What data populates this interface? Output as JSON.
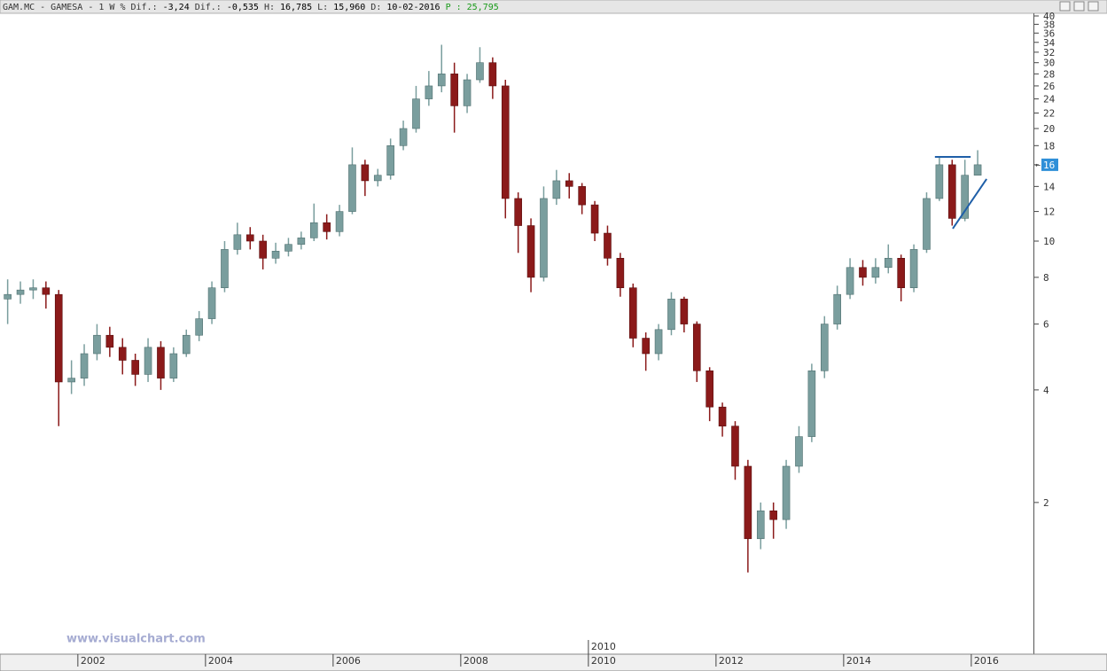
{
  "chart_data": {
    "type": "candlestick",
    "header": [
      {
        "text": "GAM.MC - GAMESA -  1 W % Dif.:",
        "color": "#333333"
      },
      {
        "text": "-3,24",
        "color": "#000000"
      },
      {
        "text": "Dif.:",
        "color": "#333333"
      },
      {
        "text": "-0,535",
        "color": "#000000"
      },
      {
        "text": "H:",
        "color": "#333333"
      },
      {
        "text": "16,785",
        "color": "#000000"
      },
      {
        "text": "L:",
        "color": "#333333"
      },
      {
        "text": "15,960",
        "color": "#000000"
      },
      {
        "text": "D:",
        "color": "#333333"
      },
      {
        "text": "10-02-2016",
        "color": "#000000"
      },
      {
        "text": "P : 25,795",
        "color": "#1a9a1a"
      }
    ],
    "watermark": "www.visualchart.com",
    "cursor_label": "2010",
    "log_scale": true,
    "up_color": "#7a9e9e",
    "down_color": "#8b1a1a",
    "x": [
      2000.9,
      2001.1,
      2001.3,
      2001.5,
      2001.7,
      2001.9,
      2002.1,
      2002.3,
      2002.5,
      2002.7,
      2002.9,
      2003.1,
      2003.3,
      2003.5,
      2003.7,
      2003.9,
      2004.1,
      2004.3,
      2004.5,
      2004.7,
      2004.9,
      2005.1,
      2005.3,
      2005.5,
      2005.7,
      2005.9,
      2006.1,
      2006.3,
      2006.5,
      2006.7,
      2006.9,
      2007.1,
      2007.3,
      2007.5,
      2007.7,
      2007.9,
      2008.1,
      2008.3,
      2008.5,
      2008.7,
      2008.9,
      2009.1,
      2009.3,
      2009.5,
      2009.7,
      2009.9,
      2010.1,
      2010.3,
      2010.5,
      2010.7,
      2010.9,
      2011.1,
      2011.3,
      2011.5,
      2011.7,
      2011.9,
      2012.1,
      2012.3,
      2012.5,
      2012.7,
      2012.9,
      2013.1,
      2013.3,
      2013.5,
      2013.7,
      2013.9,
      2014.1,
      2014.3,
      2014.5,
      2014.7,
      2014.9,
      2015.1,
      2015.3,
      2015.5,
      2015.7,
      2015.9,
      2016.1
    ],
    "open": [
      7.0,
      7.2,
      7.4,
      7.5,
      7.2,
      4.2,
      4.3,
      5.0,
      5.6,
      5.2,
      4.8,
      4.4,
      5.2,
      4.3,
      5.0,
      5.6,
      6.2,
      7.5,
      9.5,
      10.4,
      10.0,
      9.0,
      9.4,
      9.8,
      10.2,
      11.2,
      10.6,
      12.0,
      16.0,
      14.5,
      15.0,
      18.0,
      20.0,
      24.0,
      26.0,
      28.0,
      23.0,
      27.0,
      30.0,
      26.0,
      13.0,
      11.0,
      8.0,
      13.0,
      14.5,
      14.0,
      12.5,
      10.5,
      9.0,
      7.5,
      5.5,
      5.0,
      5.8,
      7.0,
      6.0,
      4.5,
      3.6,
      3.2,
      2.5,
      1.6,
      1.9,
      1.8,
      2.5,
      3.0,
      4.5,
      6.0,
      7.2,
      8.5,
      8.0,
      8.5,
      9.0,
      7.5,
      9.5,
      13.0,
      16.0,
      11.5,
      15.0
    ],
    "high": [
      7.9,
      7.8,
      7.9,
      7.8,
      7.4,
      4.8,
      5.3,
      6.0,
      5.9,
      5.5,
      5.0,
      5.5,
      5.4,
      5.2,
      5.8,
      6.5,
      7.8,
      10.0,
      11.2,
      10.9,
      10.4,
      9.9,
      10.2,
      10.6,
      12.6,
      11.8,
      12.5,
      17.8,
      16.5,
      15.6,
      18.8,
      21.0,
      26.0,
      28.5,
      33.5,
      30.0,
      28.0,
      33.0,
      31.0,
      27.0,
      13.5,
      11.5,
      14.0,
      15.5,
      15.2,
      14.3,
      12.8,
      11.0,
      9.3,
      7.7,
      5.7,
      6.0,
      7.3,
      7.1,
      6.1,
      4.6,
      3.7,
      3.3,
      2.6,
      2.0,
      2.0,
      2.6,
      3.2,
      4.7,
      6.3,
      7.6,
      9.0,
      8.9,
      9.0,
      9.8,
      9.2,
      9.8,
      13.5,
      16.8,
      16.5,
      16.5,
      17.5
    ],
    "low": [
      6.0,
      6.8,
      7.0,
      6.6,
      3.2,
      3.9,
      4.1,
      4.8,
      4.9,
      4.4,
      4.1,
      4.2,
      4.0,
      4.2,
      4.9,
      5.4,
      6.0,
      7.3,
      9.2,
      9.5,
      8.4,
      8.7,
      9.1,
      9.5,
      10.0,
      10.1,
      10.3,
      11.8,
      13.2,
      14.0,
      14.6,
      17.5,
      19.5,
      23.0,
      25.0,
      19.5,
      22.0,
      26.5,
      24.0,
      11.5,
      9.3,
      7.3,
      7.8,
      12.5,
      13.0,
      11.8,
      10.0,
      8.6,
      7.1,
      5.2,
      4.5,
      4.8,
      5.6,
      5.7,
      4.2,
      3.3,
      3.0,
      2.3,
      1.3,
      1.5,
      1.6,
      1.7,
      2.4,
      2.9,
      4.3,
      5.8,
      7.0,
      7.6,
      7.7,
      8.2,
      6.9,
      7.3,
      9.3,
      12.8,
      11.0,
      11.3,
      15.0
    ],
    "close": [
      7.2,
      7.4,
      7.5,
      7.2,
      4.2,
      4.3,
      5.0,
      5.6,
      5.2,
      4.8,
      4.4,
      5.2,
      4.3,
      5.0,
      5.6,
      6.2,
      7.5,
      9.5,
      10.4,
      10.0,
      9.0,
      9.4,
      9.8,
      10.2,
      11.2,
      10.6,
      12.0,
      16.0,
      14.5,
      15.0,
      18.0,
      20.0,
      24.0,
      26.0,
      28.0,
      23.0,
      27.0,
      30.0,
      26.0,
      13.0,
      11.0,
      8.0,
      13.0,
      14.5,
      14.0,
      12.5,
      10.5,
      9.0,
      7.5,
      5.5,
      5.0,
      5.8,
      7.0,
      6.0,
      4.5,
      3.6,
      3.2,
      2.5,
      1.6,
      1.9,
      1.8,
      2.5,
      3.0,
      4.5,
      6.0,
      7.2,
      8.5,
      8.0,
      8.5,
      9.0,
      7.5,
      9.5,
      13.0,
      16.0,
      11.5,
      15.0,
      16.0
    ],
    "xlim": [
      2000.78,
      2016.96
    ],
    "xticks": [
      2002,
      2004,
      2006,
      2008,
      2010,
      2012,
      2014,
      2016
    ],
    "ylim": [
      0.786,
      40
    ],
    "yticks": [
      2,
      4,
      6,
      8,
      10,
      12,
      14,
      16,
      18,
      20,
      22,
      24,
      26,
      28,
      30,
      32,
      34,
      36,
      38,
      40
    ],
    "trend_lines": [
      {
        "x": [
          2015.43,
          2015.99
        ],
        "y": [
          16.8,
          16.8
        ],
        "color": "#1f5fa8"
      },
      {
        "x": [
          2015.71,
          2016.24
        ],
        "y": [
          10.8,
          14.66
        ],
        "color": "#1f5fa8"
      }
    ]
  }
}
